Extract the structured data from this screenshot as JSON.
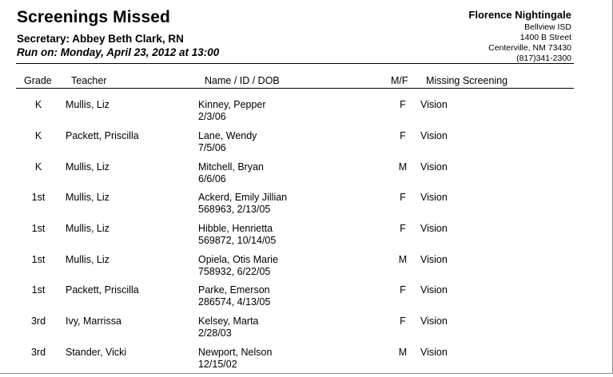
{
  "report": {
    "title": "Screenings Missed",
    "secretary": "Secretary: Abbey Beth Clark, RN",
    "run_on": "Run on: Monday, April 23, 2012 at 13:00"
  },
  "school": {
    "name": "Florence Nightingale",
    "district": "Bellview ISD",
    "street": "1400 B Street",
    "city": "Centerville, NM  73430",
    "phone": "(817)341-2300"
  },
  "columns": {
    "grade": "Grade",
    "teacher": "Teacher",
    "name": "Name / ID / DOB",
    "mf": "M/F",
    "missing": "Missing Screening"
  },
  "rows": [
    {
      "grade": "K",
      "teacher": "Mullis, Liz",
      "name": "Kinney, Pepper",
      "id_dob": "2/3/06",
      "mf": "F",
      "missing": "Vision"
    },
    {
      "grade": "K",
      "teacher": "Packett, Priscilla",
      "name": "Lane, Wendy",
      "id_dob": "7/5/06",
      "mf": "F",
      "missing": "Vision"
    },
    {
      "grade": "K",
      "teacher": "Mullis, Liz",
      "name": "Mitchell, Bryan",
      "id_dob": "6/6/06",
      "mf": "M",
      "missing": "Vision"
    },
    {
      "grade": "1st",
      "teacher": "Mullis, Liz",
      "name": "Ackerd, Emily Jillian",
      "id_dob": "568963, 2/13/05",
      "mf": "F",
      "missing": "Vision"
    },
    {
      "grade": "1st",
      "teacher": "Mullis, Liz",
      "name": "Hibble, Henrietta",
      "id_dob": "569872, 10/14/05",
      "mf": "F",
      "missing": "Vision"
    },
    {
      "grade": "1st",
      "teacher": "Mullis, Liz",
      "name": "Opiela, Otis Marie",
      "id_dob": "758932, 6/22/05",
      "mf": "M",
      "missing": "Vision"
    },
    {
      "grade": "1st",
      "teacher": "Packett, Priscilla",
      "name": "Parke, Emerson",
      "id_dob": "286574, 4/13/05",
      "mf": "F",
      "missing": "Vision"
    },
    {
      "grade": "3rd",
      "teacher": "Ivy, Marrissa",
      "name": "Kelsey, Marta",
      "id_dob": "2/28/03",
      "mf": "F",
      "missing": "Vision"
    },
    {
      "grade": "3rd",
      "teacher": "Stander, Vicki",
      "name": "Newport, Nelson",
      "id_dob": "12/15/02",
      "mf": "M",
      "missing": "Vision"
    }
  ]
}
